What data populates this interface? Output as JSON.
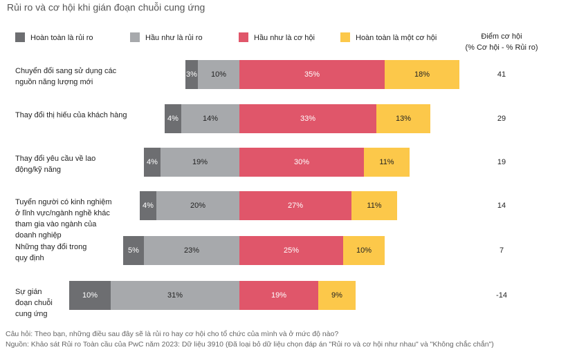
{
  "chart_data": {
    "type": "diverging_bar",
    "title": "Rủi ro và cơ hội khi gián đoạn chuỗi cung ứng",
    "categories": [
      "Chuyển đổi sang sử dụng các\nnguồn năng lượng mới",
      "Thay đổi thị hiếu của khách hàng",
      "Thay đổi yêu cầu về lao\nđộng/kỹ năng",
      "Tuyển người có kinh nghiệm\nở lĩnh vực/ngành nghề khác\ntham gia vào ngành của\ndoanh nghiệp",
      "Những thay đổi trong\nquy định",
      "Sự gián\nđoạn chuỗi\ncung ứng"
    ],
    "series": [
      {
        "name": "Hoàn toàn là rủi ro",
        "color": "#6d6e71",
        "label_color": "#ffffff",
        "side": "left",
        "values": [
          3,
          4,
          4,
          4,
          5,
          10
        ],
        "value_labels": [
          "3%",
          "4%",
          "4%",
          "4%",
          "5%",
          "10%"
        ]
      },
      {
        "name": "Hầu như là rủi ro",
        "color": "#a7a9ac",
        "label_color": "#222222",
        "side": "left",
        "values": [
          10,
          14,
          19,
          20,
          23,
          31
        ],
        "value_labels": [
          "10%",
          "14%",
          "19%",
          "20%",
          "23%",
          "31%"
        ]
      },
      {
        "name": "Hầu như là cơ hội",
        "color": "#e0566a",
        "label_color": "#ffffff",
        "side": "right",
        "values": [
          35,
          33,
          30,
          27,
          25,
          19
        ],
        "value_labels": [
          "35%",
          "33%",
          "30%",
          "27%",
          "25%",
          "19%"
        ]
      },
      {
        "name": "Hoàn toàn là một cơ hội",
        "color": "#fcc84a",
        "label_color": "#222222",
        "side": "right",
        "values": [
          18,
          13,
          11,
          11,
          10,
          9
        ],
        "value_labels": [
          "18%",
          "13%",
          "11%",
          "11%",
          "10%",
          "9%"
        ]
      }
    ],
    "score_header": "Điểm cơ hội\n(% Cơ hội - % Rủi ro)",
    "scores": [
      41,
      29,
      19,
      14,
      7,
      -14
    ],
    "footnotes": [
      "Câu hỏi: Theo bạn, những điều sau đây sẽ là rủi ro hay cơ hội cho tổ chức của mình và ở mức độ nào?",
      "Nguồn: Khảo sát Rủi ro Toàn cầu của PwC năm 2023: Dữ liệu 3910 (Đã loại bỏ dữ liệu chọn đáp án \"Rủi ro và cơ hội như nhau\" và \"Không chắc chắn\")"
    ]
  }
}
